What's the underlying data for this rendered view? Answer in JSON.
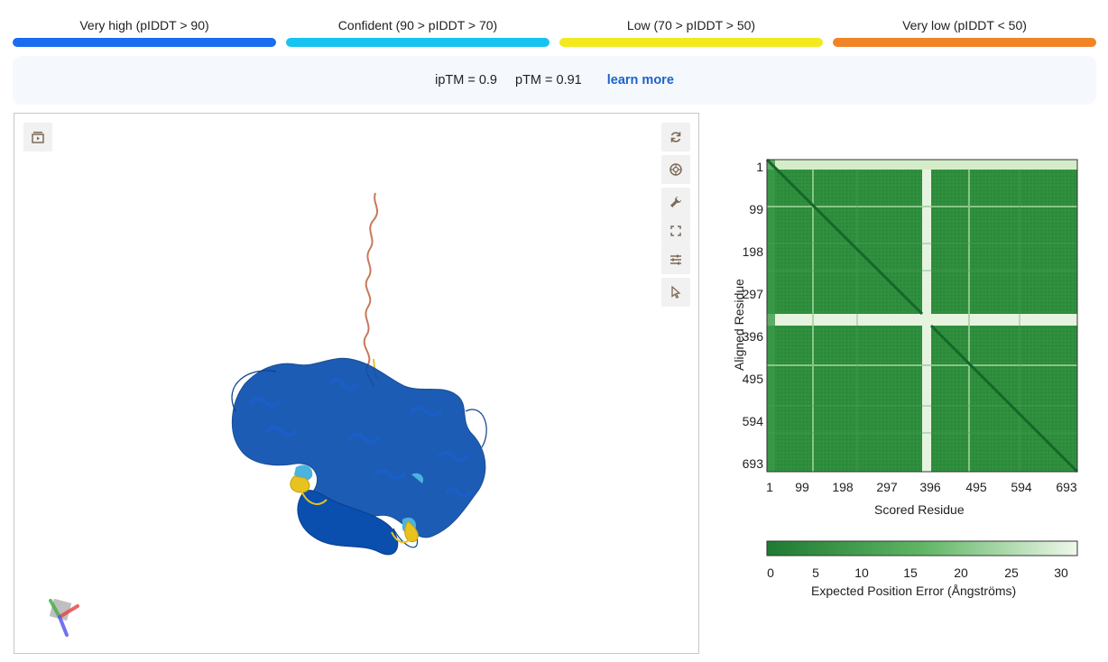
{
  "legend": [
    {
      "label": "Very high (pIDDT > 90)",
      "color": "#1a6cf0"
    },
    {
      "label": "Confident (90 > pIDDT > 70)",
      "color": "#17c3f0"
    },
    {
      "label": "Low (70 > pIDDT > 50)",
      "color": "#f2ea1e"
    },
    {
      "label": "Very low (pIDDT < 50)",
      "color": "#f08426"
    }
  ],
  "scores": {
    "iptm": "ipTM = 0.9",
    "ptm": "pTM = 0.91",
    "learn_more": "learn more"
  },
  "viewer": {
    "tools_left": [
      "sequence-toggle-icon"
    ],
    "tools_right": [
      "reset-rotation-icon",
      "camera-icon",
      "wrench-icon",
      "fullscreen-icon",
      "sliders-icon",
      "cursor-icon"
    ]
  },
  "pae": {
    "ylabel": "Aligned Residue",
    "xlabel": "Scored Residue",
    "ticks": [
      "1",
      "99",
      "198",
      "297",
      "396",
      "495",
      "594",
      "693"
    ],
    "colorbar_ticks": [
      "0",
      "5",
      "10",
      "15",
      "20",
      "25",
      "30"
    ],
    "colorbar_label": "Expected Position Error (Ångströms)",
    "colors": {
      "low_error": "#1e7a32",
      "high_error": "#eef8ea"
    }
  }
}
